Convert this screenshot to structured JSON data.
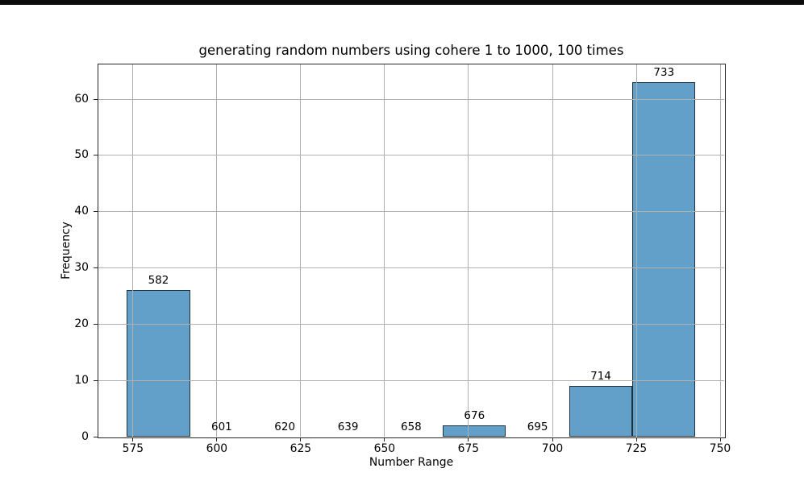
{
  "window": {
    "topbar_color": "#0c0c0c"
  },
  "chart_data": {
    "type": "bar",
    "title": "generating random numbers using cohere 1 to 1000, 100 times",
    "xlabel": "Number Range",
    "ylabel": "Frequency",
    "categories": [
      "582",
      "601",
      "620",
      "639",
      "658",
      "676",
      "695",
      "714",
      "733"
    ],
    "values": [
      26,
      0,
      0,
      0,
      0,
      2,
      0,
      9,
      63
    ],
    "bin_start": 573.2,
    "bin_width": 18.83,
    "xticks": [
      "575",
      "600",
      "625",
      "650",
      "675",
      "700",
      "725",
      "750"
    ],
    "xtick_values": [
      575,
      600,
      625,
      650,
      675,
      700,
      725,
      750
    ],
    "yticks": [
      "0",
      "10",
      "20",
      "30",
      "40",
      "50",
      "60"
    ],
    "ytick_values": [
      0,
      10,
      20,
      30,
      40,
      50,
      60
    ],
    "xlim": [
      564.7,
      751.2
    ],
    "ylim": [
      0,
      66.15
    ],
    "grid": "on",
    "grid_over_bars": "true",
    "legend": "none",
    "bar_color": "#62a0ca",
    "bar_edge_color": "#20303c",
    "grid_color": "#b0b0b0",
    "spine_color": "#262626",
    "text_color": "#000000"
  }
}
